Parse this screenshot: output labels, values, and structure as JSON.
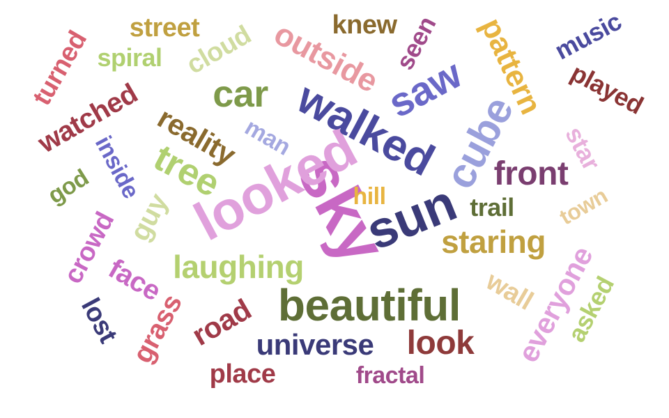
{
  "words": [
    {
      "text": "sky",
      "color": "#c868c4"
    },
    {
      "text": "looked",
      "color": "#e0a0dc"
    },
    {
      "text": "walked",
      "color": "#4a4a9e"
    },
    {
      "text": "sun",
      "color": "#3a3a78"
    },
    {
      "text": "beautiful",
      "color": "#5e6e36"
    },
    {
      "text": "cube",
      "color": "#9aa0dc"
    },
    {
      "text": "saw",
      "color": "#6a68c8"
    },
    {
      "text": "car",
      "color": "#7e9a4a"
    },
    {
      "text": "outside",
      "color": "#e898a0"
    },
    {
      "text": "tree",
      "color": "#b0d070"
    },
    {
      "text": "front",
      "color": "#7a3e70"
    },
    {
      "text": "reality",
      "color": "#8a6a2e"
    },
    {
      "text": "pattern",
      "color": "#e8b440"
    },
    {
      "text": "staring",
      "color": "#c0a040"
    },
    {
      "text": "laughing",
      "color": "#b4d070"
    },
    {
      "text": "look",
      "color": "#8e3a3a"
    },
    {
      "text": "universe",
      "color": "#3a3a78"
    },
    {
      "text": "watched",
      "color": "#a03a48"
    },
    {
      "text": "music",
      "color": "#4a4a9e"
    },
    {
      "text": "played",
      "color": "#8a3434"
    },
    {
      "text": "everyone",
      "color": "#e0a0dc"
    },
    {
      "text": "road",
      "color": "#a03a48"
    },
    {
      "text": "turned",
      "color": "#d86070"
    },
    {
      "text": "cloud",
      "color": "#d0dca0"
    },
    {
      "text": "street",
      "color": "#c0a040"
    },
    {
      "text": "knew",
      "color": "#8a6a2e"
    },
    {
      "text": "seen",
      "color": "#a04a8a"
    },
    {
      "text": "spiral",
      "color": "#b0d070"
    },
    {
      "text": "man",
      "color": "#a4a8e0"
    },
    {
      "text": "inside",
      "color": "#6a68c8"
    },
    {
      "text": "god",
      "color": "#7e9a4a"
    },
    {
      "text": "guy",
      "color": "#d0dca0"
    },
    {
      "text": "star",
      "color": "#e8b0dc"
    },
    {
      "text": "hill",
      "color": "#e8b440"
    },
    {
      "text": "trail",
      "color": "#5e6e36"
    },
    {
      "text": "town",
      "color": "#e8cc98"
    },
    {
      "text": "crowd",
      "color": "#c868c4"
    },
    {
      "text": "face",
      "color": "#c868c4"
    },
    {
      "text": "lost",
      "color": "#3a3a78"
    },
    {
      "text": "grass",
      "color": "#d86070"
    },
    {
      "text": "wall",
      "color": "#e8cc98"
    },
    {
      "text": "asked",
      "color": "#b4d070"
    },
    {
      "text": "place",
      "color": "#a03a48"
    },
    {
      "text": "fractal",
      "color": "#a04a8a"
    }
  ]
}
